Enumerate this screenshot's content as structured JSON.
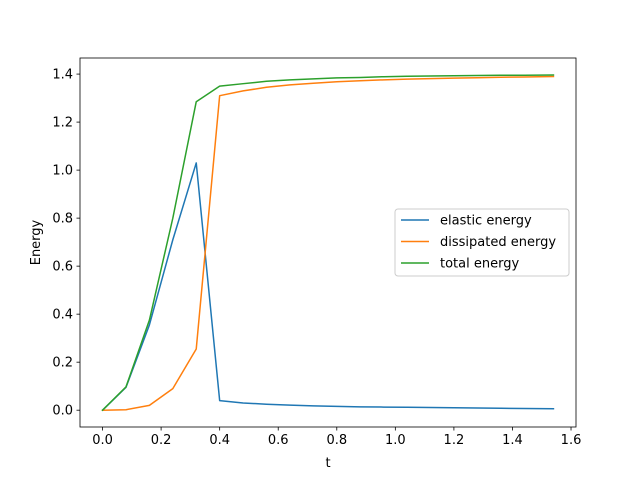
{
  "chart_data": {
    "type": "line",
    "title": "",
    "xlabel": "t",
    "ylabel": "Energy",
    "xlim": [
      -0.077,
      1.617
    ],
    "ylim": [
      -0.07,
      1.467
    ],
    "xticks": [
      0.0,
      0.2,
      0.4,
      0.6,
      0.8,
      1.0,
      1.2,
      1.4,
      1.6
    ],
    "xtick_labels": [
      "0.0",
      "0.2",
      "0.4",
      "0.6",
      "0.8",
      "1.0",
      "1.2",
      "1.4",
      "1.6"
    ],
    "yticks": [
      0.0,
      0.2,
      0.4,
      0.6,
      0.8,
      1.0,
      1.2,
      1.4
    ],
    "ytick_labels": [
      "0.0",
      "0.2",
      "0.4",
      "0.6",
      "0.8",
      "1.0",
      "1.2",
      "1.4"
    ],
    "grid": false,
    "legend_position": "center-right",
    "x": [
      0.0,
      0.08,
      0.16,
      0.24,
      0.32,
      0.4,
      0.48,
      0.56,
      0.64,
      0.72,
      0.8,
      0.88,
      0.96,
      1.04,
      1.12,
      1.2,
      1.28,
      1.36,
      1.44,
      1.54
    ],
    "series": [
      {
        "name": "elastic energy",
        "color": "#1f77b4",
        "values": [
          0.0,
          0.095,
          0.355,
          0.71,
          1.03,
          0.04,
          0.03,
          0.025,
          0.021,
          0.018,
          0.016,
          0.014,
          0.013,
          0.012,
          0.011,
          0.01,
          0.009,
          0.008,
          0.007,
          0.006
        ]
      },
      {
        "name": "dissipated energy",
        "color": "#ff7f0e",
        "values": [
          0.0,
          0.002,
          0.02,
          0.09,
          0.255,
          1.31,
          1.33,
          1.345,
          1.355,
          1.362,
          1.368,
          1.372,
          1.376,
          1.379,
          1.381,
          1.383,
          1.385,
          1.387,
          1.388,
          1.39
        ]
      },
      {
        "name": "total energy",
        "color": "#2ca02c",
        "values": [
          0.0,
          0.097,
          0.375,
          0.8,
          1.285,
          1.35,
          1.36,
          1.37,
          1.376,
          1.38,
          1.384,
          1.386,
          1.389,
          1.391,
          1.392,
          1.393,
          1.394,
          1.395,
          1.395,
          1.396
        ]
      }
    ]
  }
}
